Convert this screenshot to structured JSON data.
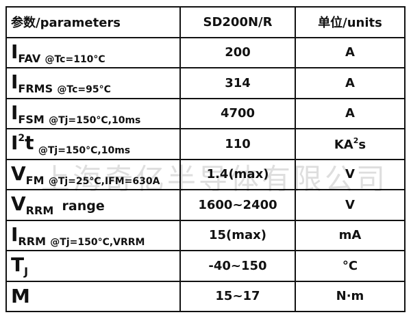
{
  "header": {
    "param": "参数/parameters",
    "model": "SD200N/R",
    "unit": "单位/units"
  },
  "rows": [
    {
      "sym": "I",
      "sup": "",
      "sub": "FAV",
      "cond": "@Tc=110°C",
      "value": "200",
      "unit": "A",
      "unit_sup": "",
      "unit_tail": ""
    },
    {
      "sym": "I",
      "sup": "",
      "sub": "FRMS",
      "cond": "@Tc=95°C",
      "value": "314",
      "unit": "A",
      "unit_sup": "",
      "unit_tail": ""
    },
    {
      "sym": "I",
      "sup": "",
      "sub": "FSM",
      "cond": "@Tj=150°C,10ms",
      "value": "4700",
      "unit": "A",
      "unit_sup": "",
      "unit_tail": ""
    },
    {
      "sym": "I",
      "sup": "2",
      "sub": "t",
      "cond": "@Tj=150°C,10ms",
      "value": "110",
      "unit": "KA",
      "unit_sup": "2",
      "unit_tail": "s"
    },
    {
      "sym": "V",
      "sup": "",
      "sub": "FM",
      "cond": "@Tj=25°C,IFM=630A",
      "value": "1.4(max)",
      "unit": "V",
      "unit_sup": "",
      "unit_tail": ""
    },
    {
      "sym": "V",
      "sup": "",
      "sub": "RRM",
      "cond": "range",
      "value": "1600~2400",
      "unit": "V",
      "unit_sup": "",
      "unit_tail": ""
    },
    {
      "sym": "I",
      "sup": "",
      "sub": "RRM",
      "cond": "@Tj=150°C,VRRM",
      "value": "15(max)",
      "unit": "mA",
      "unit_sup": "",
      "unit_tail": ""
    },
    {
      "sym": "T",
      "sup": "",
      "sub": "J",
      "cond": "",
      "value": "-40~150",
      "unit": "°C",
      "unit_sup": "",
      "unit_tail": ""
    },
    {
      "sym": "M",
      "sup": "",
      "sub": "",
      "cond": "",
      "value": "15~17",
      "unit": "N·m",
      "unit_sup": "",
      "unit_tail": ""
    }
  ],
  "watermark": "上海奇亿半导体有限公司"
}
